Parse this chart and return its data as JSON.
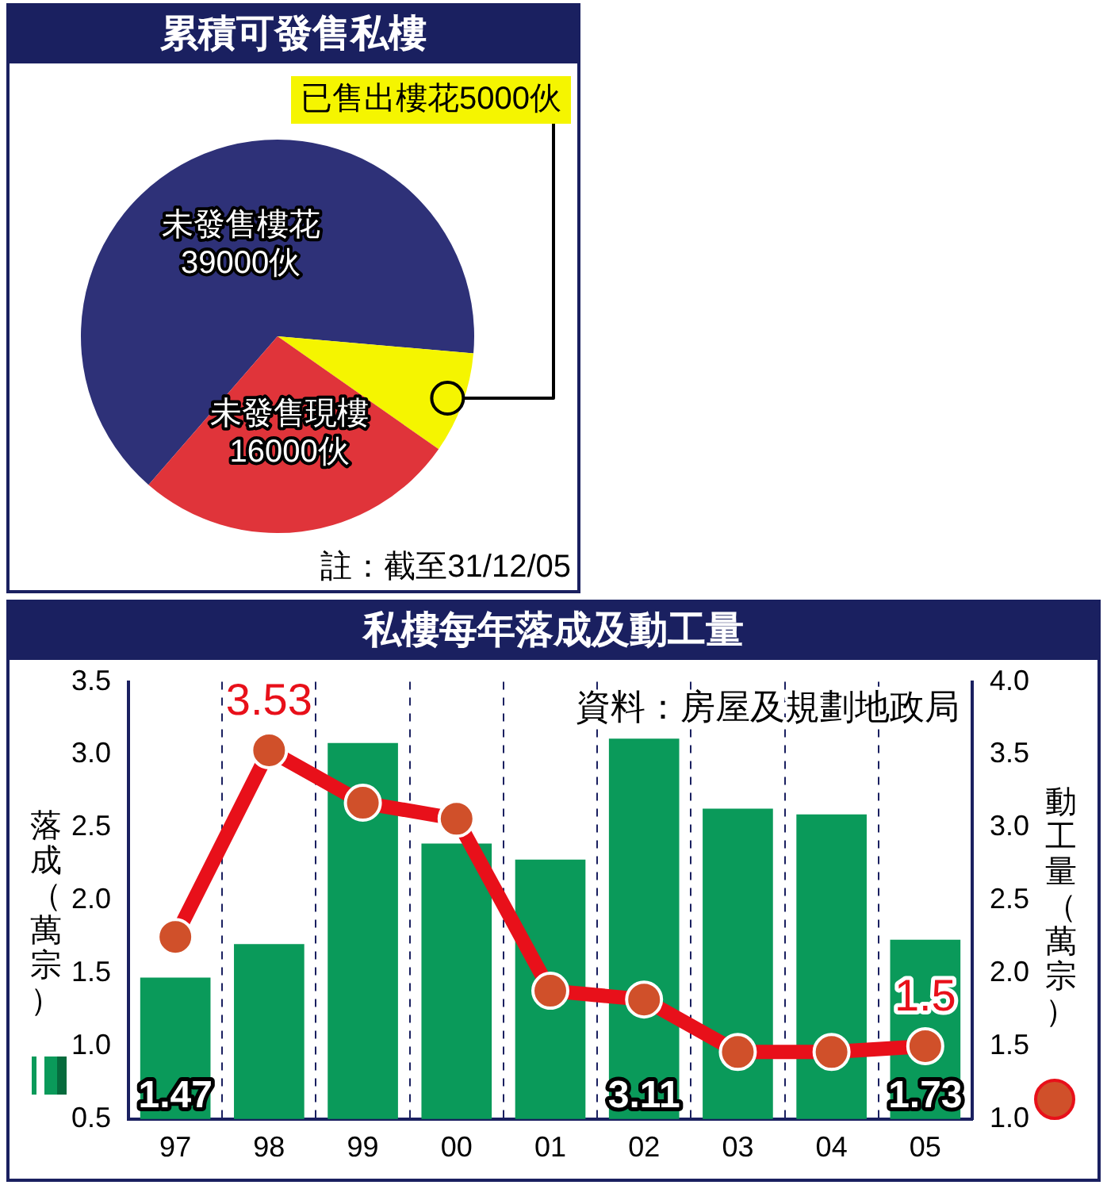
{
  "chart_data": [
    {
      "type": "pie",
      "title": "累積可發售私樓",
      "categories": [
        "未發售樓花",
        "已售出樓花",
        "未發售現樓"
      ],
      "values": [
        39000,
        5000,
        16000
      ],
      "colors": [
        "#2e3178",
        "#f5f500",
        "#e0343a"
      ],
      "value_labels": [
        "39000伙",
        "5000伙",
        "16000伙"
      ],
      "annotations": [
        "註：截至31/12/05"
      ]
    },
    {
      "type": "bar",
      "title": "私樓每年落成及動工量",
      "categories": [
        "97",
        "98",
        "99",
        "00",
        "01",
        "02",
        "03",
        "04",
        "05"
      ],
      "ylabel": "落成（萬宗）",
      "y2label": "動工量（萬宗）",
      "ylim": [
        0.5,
        3.5
      ],
      "yticks": [
        {
          "value": 0.5,
          "label": "0.5"
        },
        {
          "value": 1,
          "label": "1.0"
        },
        {
          "value": 1.5,
          "label": "1.5"
        },
        {
          "value": 2,
          "label": "2.0"
        },
        {
          "value": 2.5,
          "label": "2.5"
        },
        {
          "value": 3,
          "label": "3.0"
        },
        {
          "value": 3.5,
          "label": "3.5"
        }
      ],
      "y2lim": [
        1,
        4
      ],
      "y2ticks": [
        {
          "value": 1,
          "label": "1.0"
        },
        {
          "value": 1.5,
          "label": "1.5"
        },
        {
          "value": 2,
          "label": "2.0"
        },
        {
          "value": 2.5,
          "label": "2.5"
        },
        {
          "value": 3,
          "label": "3.0"
        },
        {
          "value": 3.5,
          "label": "3.5"
        },
        {
          "value": 4,
          "label": "4.0"
        }
      ],
      "series": [
        {
          "type": "bar",
          "color": "#0a9a5a",
          "values": [
            1.47,
            1.7,
            3.08,
            2.39,
            2.28,
            3.11,
            2.63,
            2.59,
            1.73
          ],
          "value_labels": [
            "1.47",
            null,
            null,
            null,
            null,
            "3.11",
            null,
            null,
            "1.73"
          ]
        },
        {
          "type": "line",
          "axis": "y2",
          "color": "#e8101a",
          "values": [
            2.25,
            3.53,
            3.17,
            3.06,
            1.88,
            1.82,
            1.46,
            1.46,
            1.5
          ],
          "value_labels": [
            null,
            "3.53",
            null,
            null,
            null,
            null,
            null,
            null,
            "1.5"
          ]
        }
      ],
      "marker": "circle",
      "grid": "x",
      "annotations": [
        "資料：房屋及規劃地政局"
      ]
    }
  ]
}
